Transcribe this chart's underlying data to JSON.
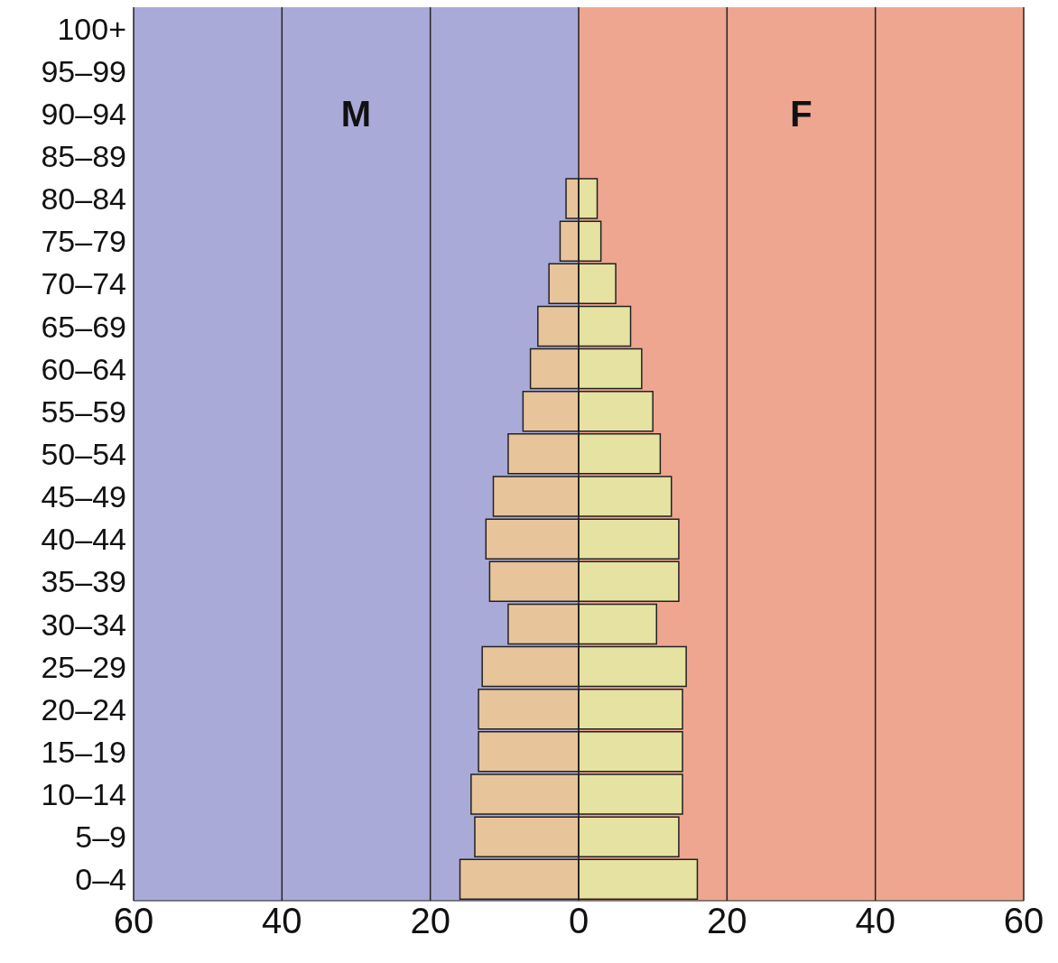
{
  "chart_data": {
    "type": "bar",
    "orientation": "horizontal",
    "stacked": true,
    "categories": [
      "100+",
      "95–99",
      "90–94",
      "85–89",
      "80–84",
      "75–79",
      "70–74",
      "65–69",
      "60–64",
      "55–59",
      "50–54",
      "45–49",
      "40–44",
      "35–39",
      "30–34",
      "25–29",
      "20–24",
      "15–19",
      "10–14",
      "5–9",
      "0–4"
    ],
    "series": [
      {
        "color": "#e8c49a",
        "values": [
          0,
          0,
          0,
          0,
          -1.7,
          -2.5,
          -4,
          -5.5,
          -6.5,
          -7.5,
          -9.5,
          -11.5,
          -12.5,
          -12,
          -9.5,
          -13,
          -13.5,
          -13.5,
          -14.5,
          -14,
          -16
        ]
      },
      {
        "color": "#e6e2a2",
        "values": [
          0,
          0,
          0,
          0,
          2.5,
          3,
          5,
          7,
          8.5,
          10,
          11,
          12.5,
          13.5,
          13.5,
          10.5,
          14.5,
          14,
          14,
          14,
          13.5,
          16
        ]
      }
    ],
    "xlim": [
      -60,
      60
    ],
    "xticks": [
      {
        "value": -60,
        "label": "60"
      },
      {
        "value": -40,
        "label": "40"
      },
      {
        "value": -20,
        "label": "20"
      },
      0,
      20,
      40,
      60
    ],
    "grid": "x",
    "bands": [
      {
        "axis": "x",
        "from": -60,
        "to": 0,
        "color": "#a9aad8"
      },
      {
        "axis": "x",
        "from": 0,
        "to": 60,
        "color": "#eea690"
      }
    ],
    "annotations": [
      "M",
      "F"
    ]
  }
}
